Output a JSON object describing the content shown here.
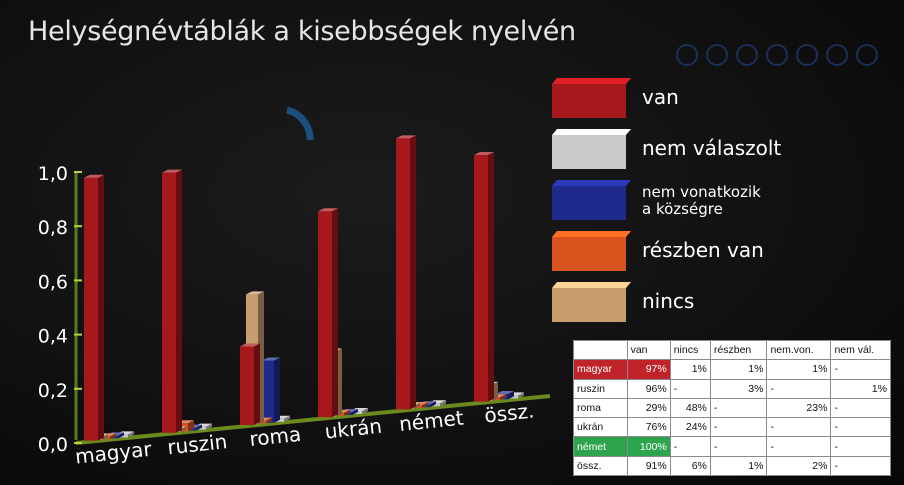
{
  "colors": {
    "van": "#a6181c",
    "nem_valaszolt": "#c9c9c9",
    "nem_vonatkozik": "#1f2b8c",
    "reszben_van": "#d9531e",
    "nincs": "#c89e6f",
    "highlight_red": "#c0242a",
    "highlight_green": "#2fa44f"
  },
  "chart_data": {
    "type": "bar",
    "title": "Helységnévtáblák a kisebbségek nyelvén",
    "categories": [
      "magyar",
      "ruszin",
      "roma",
      "ukrán",
      "német",
      "össz."
    ],
    "ylim": [
      0,
      1
    ],
    "yticks": [
      "0,0",
      "0,2",
      "0,4",
      "0,6",
      "0,8",
      "1,0"
    ],
    "legend_position": "right",
    "series": [
      {
        "name": "van",
        "color": "#a6181c",
        "values": [
          0.97,
          0.96,
          0.29,
          0.76,
          1.0,
          0.91
        ]
      },
      {
        "name": "nem válaszolt",
        "color": "#c9c9c9",
        "values": [
          0,
          0.01,
          0,
          0,
          0,
          0
        ]
      },
      {
        "name": "nem vonatkozik a községre",
        "color": "#1f2b8c",
        "values": [
          0.01,
          0,
          0.23,
          0,
          0,
          0.02
        ]
      },
      {
        "name": "részben van",
        "color": "#d9531e",
        "values": [
          0.01,
          0.03,
          0,
          0,
          0,
          0.01
        ]
      },
      {
        "name": "nincs",
        "color": "#c89e6f",
        "values": [
          0.01,
          0,
          0.48,
          0.24,
          0,
          0.06
        ]
      }
    ]
  },
  "legend": [
    {
      "label": "van",
      "color": "#a6181c"
    },
    {
      "label": "nem válaszolt",
      "color": "#c9c9c9"
    },
    {
      "label": "nem vonatkozik\na községre",
      "color": "#1f2b8c"
    },
    {
      "label": "részben van",
      "color": "#d9531e"
    },
    {
      "label": "nincs",
      "color": "#c89e6f"
    }
  ],
  "table": {
    "headers": [
      "",
      "van",
      "nincs",
      "részben",
      "nem.von.",
      "nem vál."
    ],
    "rows": [
      [
        "magyar",
        "97%",
        "1%",
        "1%",
        "1%",
        "-"
      ],
      [
        "ruszin",
        "96%",
        "-",
        "3%",
        "-",
        "1%"
      ],
      [
        "roma",
        "29%",
        "48%",
        "-",
        "23%",
        "-"
      ],
      [
        "ukrán",
        "76%",
        "24%",
        "-",
        "-",
        "-"
      ],
      [
        "német",
        "100%",
        "-",
        "-",
        "-",
        "-"
      ],
      [
        "össz.",
        "91%",
        "6%",
        "1%",
        "2%",
        "-"
      ]
    ],
    "highlight": {
      "0": "red",
      "4": "green"
    }
  }
}
